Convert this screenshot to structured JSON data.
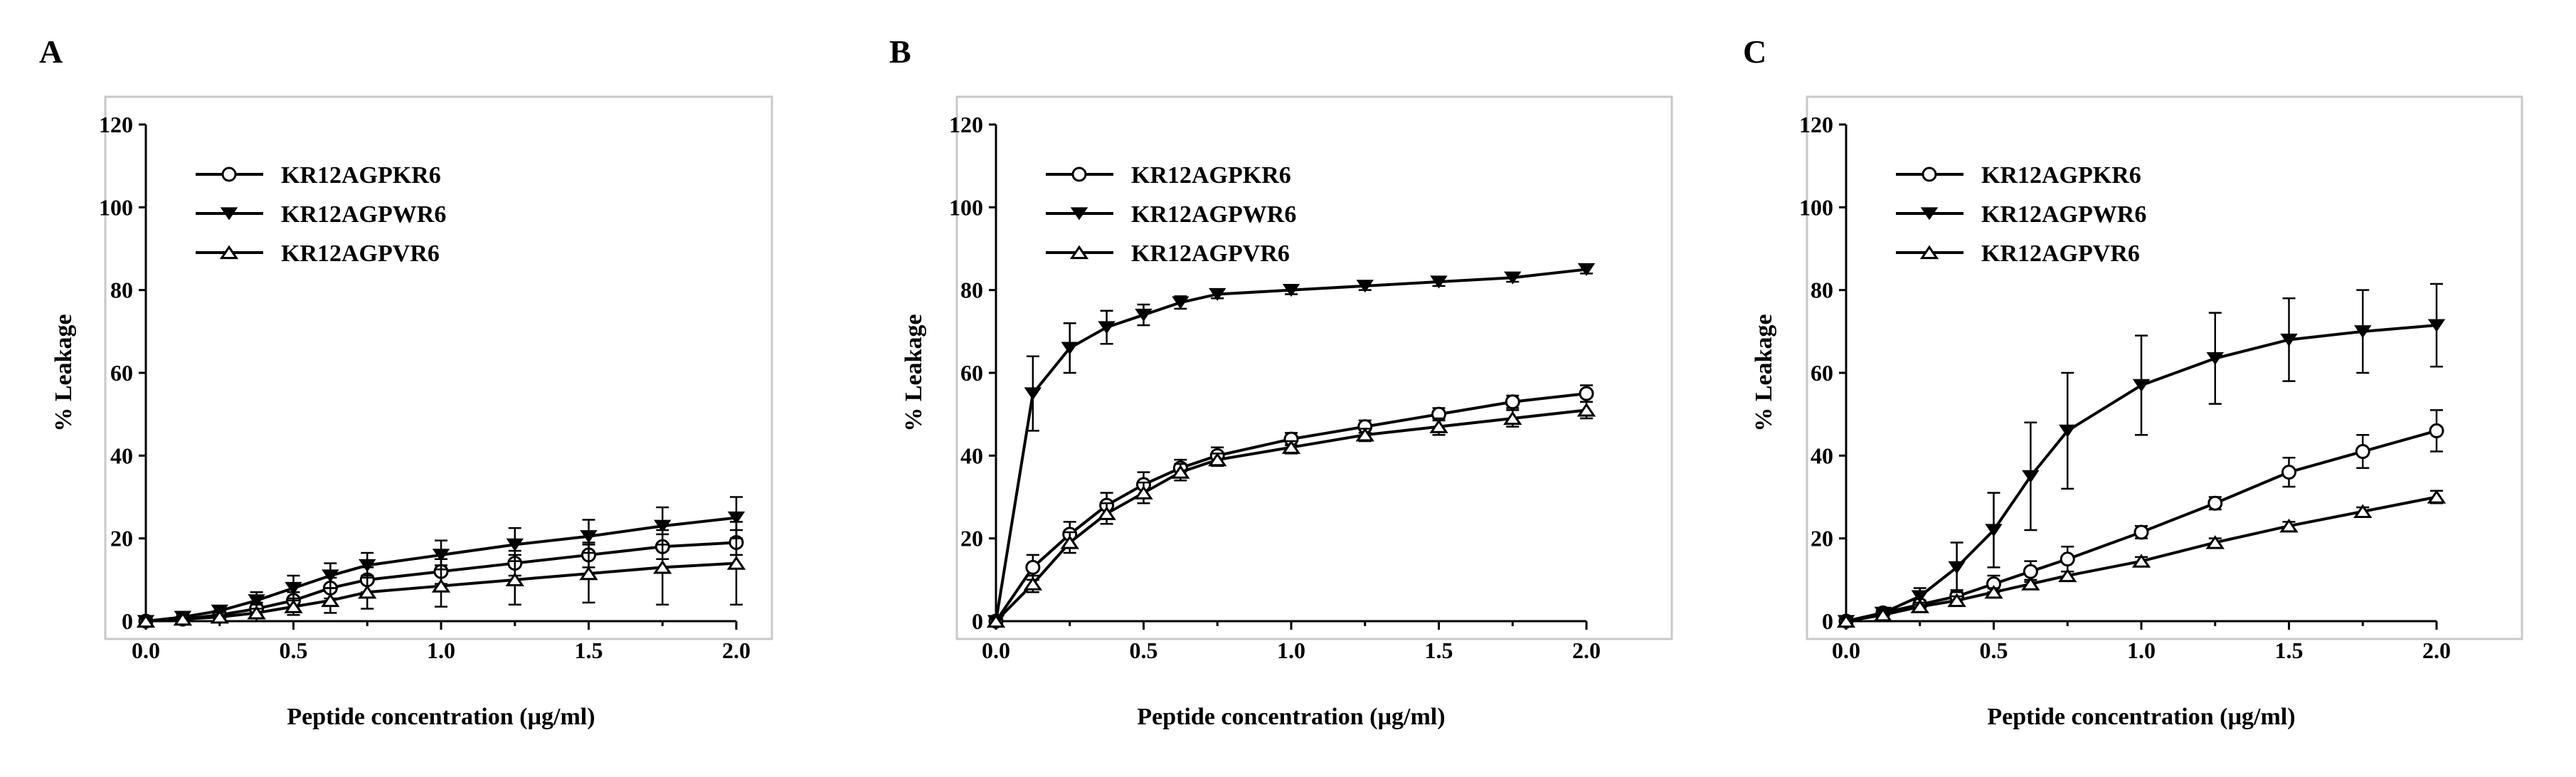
{
  "figure": {
    "panels": [
      "A",
      "B",
      "C"
    ]
  },
  "chart_data": [
    {
      "panel": "A",
      "type": "line",
      "title": "",
      "xlabel": "Peptide concentration (µg/ml)",
      "ylabel": "% Leakage",
      "xlim": [
        0,
        2
      ],
      "ylim": [
        0,
        120
      ],
      "xticks": [
        "0.0",
        "0.5",
        "1.0",
        "1.5",
        "2.0"
      ],
      "yticks": [
        "0",
        "20",
        "40",
        "60",
        "80",
        "100",
        "120"
      ],
      "legend_position": "top-left",
      "x": [
        0,
        0.125,
        0.25,
        0.375,
        0.5,
        0.625,
        0.75,
        1.0,
        1.25,
        1.5,
        1.75,
        2.0
      ],
      "series": [
        {
          "name": "KR12AGPKR6",
          "marker": "circle-open",
          "values": [
            0,
            0.5,
            1.5,
            3,
            5,
            8,
            10,
            12,
            14,
            16,
            18,
            19
          ],
          "errors": [
            0,
            0.5,
            1,
            1.5,
            2,
            2.5,
            3,
            3,
            3,
            3,
            3,
            3
          ]
        },
        {
          "name": "KR12AGPWR6",
          "marker": "triangle-down-filled",
          "values": [
            0,
            1,
            2.5,
            5,
            8,
            11,
            13.5,
            16,
            18.5,
            20.5,
            23,
            25
          ],
          "errors": [
            0,
            0.5,
            1,
            2,
            3,
            3,
            3,
            3.5,
            4,
            4,
            4.5,
            5
          ]
        },
        {
          "name": "KR12AGPVR6",
          "marker": "triangle-up-open",
          "values": [
            0,
            0.5,
            1,
            2,
            3.5,
            5,
            7,
            8.5,
            10,
            11.5,
            13,
            14
          ],
          "errors": [
            0,
            0.5,
            1,
            2,
            2,
            3,
            4,
            5,
            6,
            7,
            9,
            10
          ]
        }
      ]
    },
    {
      "panel": "B",
      "type": "line",
      "title": "",
      "xlabel": "Peptide concentration (µg/ml)",
      "ylabel": "% Leakage",
      "xlim": [
        0,
        2
      ],
      "ylim": [
        0,
        120
      ],
      "xticks": [
        "0.0",
        "0.5",
        "1.0",
        "1.5",
        "2.0"
      ],
      "yticks": [
        "0",
        "20",
        "40",
        "60",
        "80",
        "100",
        "120"
      ],
      "legend_position": "top-left",
      "x": [
        0,
        0.125,
        0.25,
        0.375,
        0.5,
        0.625,
        0.75,
        1.0,
        1.25,
        1.5,
        1.75,
        2.0
      ],
      "series": [
        {
          "name": "KR12AGPKR6",
          "marker": "circle-open",
          "values": [
            0,
            13,
            21,
            28,
            33,
            37,
            40,
            44,
            47,
            50,
            53,
            55
          ],
          "errors": [
            0,
            3,
            3,
            3,
            3,
            2,
            2,
            1.5,
            1.5,
            1.5,
            1.5,
            2
          ]
        },
        {
          "name": "KR12AGPWR6",
          "marker": "triangle-down-filled",
          "values": [
            0,
            55,
            66,
            71,
            74,
            77,
            79,
            80,
            81,
            82,
            83,
            85
          ],
          "errors": [
            0,
            9,
            6,
            4,
            2.5,
            1.5,
            1,
            1,
            1,
            1,
            1,
            1
          ]
        },
        {
          "name": "KR12AGPVR6",
          "marker": "triangle-up-open",
          "values": [
            0,
            9,
            19,
            26,
            31,
            36,
            39,
            42,
            45,
            47,
            49,
            51
          ],
          "errors": [
            0,
            2,
            2.5,
            2.5,
            2.5,
            2,
            1.5,
            1.5,
            1.5,
            2,
            2,
            2
          ]
        }
      ]
    },
    {
      "panel": "C",
      "type": "line",
      "title": "",
      "xlabel": "Peptide concentration (µg/ml)",
      "ylabel": "% Leakage",
      "xlim": [
        0,
        2
      ],
      "ylim": [
        0,
        120
      ],
      "xticks": [
        "0.0",
        "0.5",
        "1.0",
        "1.5",
        "2.0"
      ],
      "yticks": [
        "0",
        "20",
        "40",
        "60",
        "80",
        "100",
        "120"
      ],
      "legend_position": "top-left",
      "x": [
        0,
        0.125,
        0.25,
        0.375,
        0.5,
        0.625,
        0.75,
        1.0,
        1.25,
        1.5,
        1.75,
        2.0
      ],
      "series": [
        {
          "name": "KR12AGPKR6",
          "marker": "circle-open",
          "values": [
            0,
            2,
            4,
            6,
            9,
            12,
            15,
            21.5,
            28.5,
            36,
            41,
            46
          ],
          "errors": [
            0,
            0.5,
            1,
            1.5,
            2,
            2.5,
            3,
            1.5,
            1.5,
            3.5,
            4,
            5
          ]
        },
        {
          "name": "KR12AGPWR6",
          "marker": "triangle-down-filled",
          "values": [
            0,
            2,
            6,
            13,
            22,
            35,
            46,
            57,
            63.5,
            68,
            70,
            71.5
          ],
          "errors": [
            0,
            1,
            2,
            6,
            9,
            13,
            14,
            12,
            11,
            10,
            10,
            10
          ]
        },
        {
          "name": "KR12AGPVR6",
          "marker": "triangle-up-open",
          "values": [
            0,
            1.5,
            3.5,
            5,
            7,
            9,
            11,
            14.5,
            19,
            23,
            26.5,
            30
          ],
          "errors": [
            0,
            0.5,
            1,
            1,
            1,
            1,
            1,
            1,
            1,
            1,
            1,
            1.5
          ]
        }
      ]
    }
  ]
}
